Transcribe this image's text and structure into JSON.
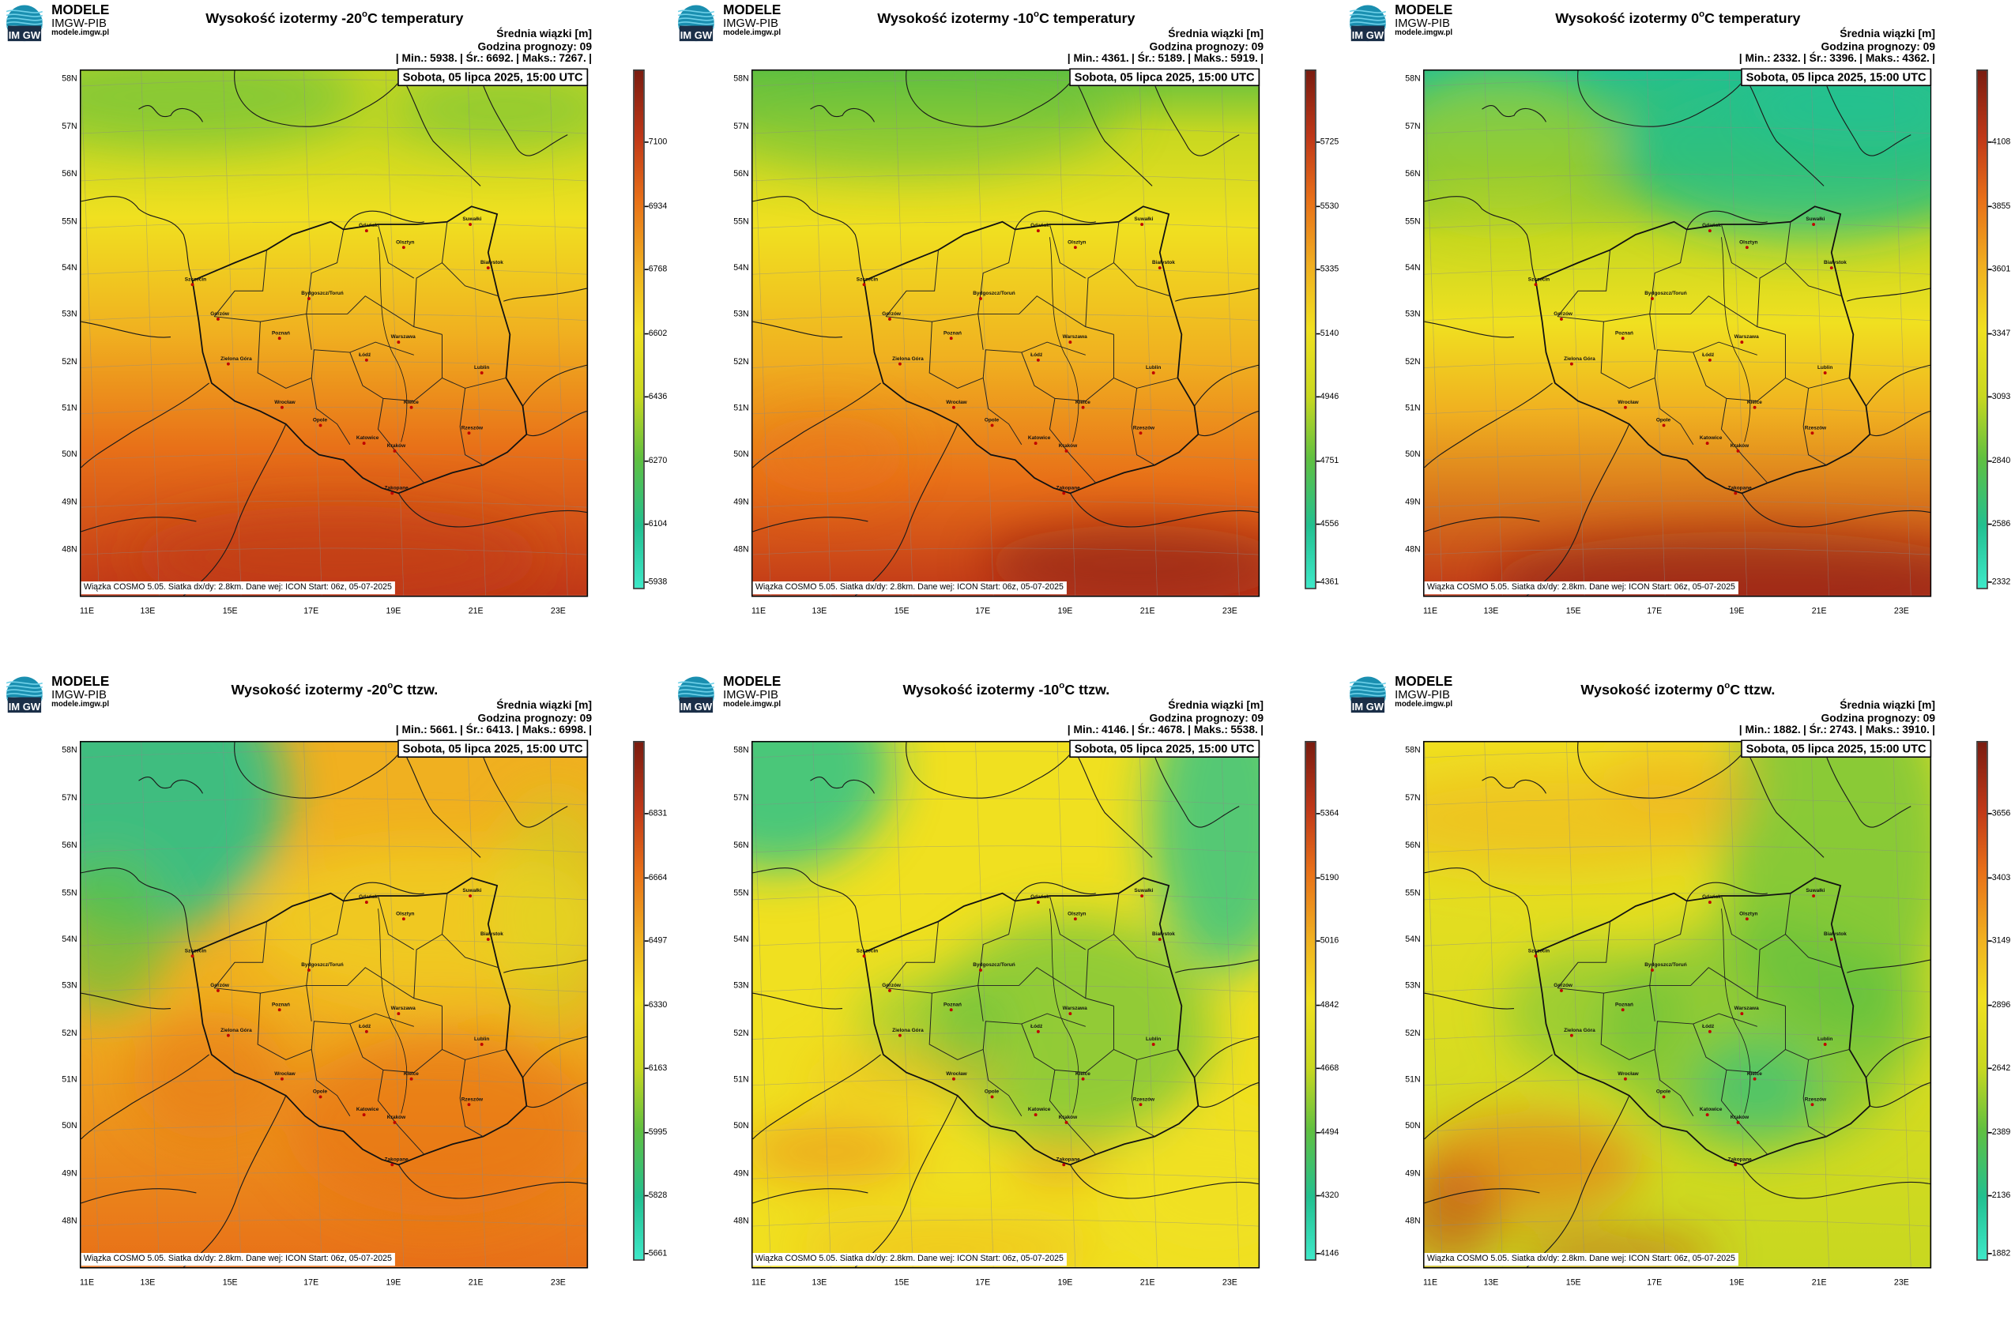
{
  "brand": {
    "name": "MODELE",
    "org": "IMGW-PIB",
    "url": "modele.imgw.pl",
    "logo_text": "IM GW"
  },
  "common": {
    "avg_label": "Średnia wiązki [m]",
    "forecast_label": "Godzina prognozy: 09",
    "date": "Sobota, 05 lipca 2025, 15:00 UTC",
    "footer": "Wiązka COSMO 5.05. Siatka dx/dy: 2.8km. Dane wej: ICON Start: 06z, 05-07-2025",
    "lat_labels": [
      "58N",
      "57N",
      "56N",
      "55N",
      "54N",
      "53N",
      "52N",
      "51N",
      "50N",
      "49N",
      "48N"
    ],
    "lon_labels": [
      "11E",
      "13E",
      "15E",
      "17E",
      "19E",
      "21E",
      "23E"
    ],
    "cities": [
      "Gdańsk",
      "Olsztyn",
      "Suwałki",
      "Szczecin",
      "Białystok",
      "Bydgoszcz/Toruń",
      "Gorzów",
      "Poznań",
      "Warszawa",
      "Łódź",
      "Zielona Góra",
      "Lublin",
      "Wrocław",
      "Kielce",
      "Opole",
      "Rzeszów",
      "Katowice",
      "Kraków",
      "Zakopane"
    ]
  },
  "panels": [
    {
      "title_pre": "Wysokość izotermy -20",
      "title_deg": "o",
      "title_post": "C temperatury",
      "stats": [
        "| Min.:",
        "5938.",
        "| Śr.:",
        "6692.",
        "| Maks.:",
        "7267.",
        "|"
      ],
      "cbar": [
        "7100",
        "6934",
        "6768",
        "6602",
        "6436",
        "6270",
        "6104",
        "5938"
      ],
      "colors": [
        "#3ee8c8",
        "#22c090",
        "#60c040",
        "#c8d820",
        "#f0e020",
        "#f0b020",
        "#e87018",
        "#c03818",
        "#7a1c10"
      ]
    },
    {
      "title_pre": "Wysokość izotermy -10",
      "title_deg": "o",
      "title_post": "C temperatury",
      "stats": [
        "| Min.:",
        "4361.",
        "| Śr.:",
        "5189.",
        "| Maks.:",
        "5919.",
        "|"
      ],
      "cbar": [
        "5725",
        "5530",
        "5335",
        "5140",
        "4946",
        "4751",
        "4556",
        "4361"
      ],
      "colors": [
        "#3ee8c8",
        "#22c090",
        "#60c040",
        "#c8d820",
        "#f0e020",
        "#f0b020",
        "#e87018",
        "#c03818",
        "#7a1c10"
      ]
    },
    {
      "title_pre": "Wysokość izotermy 0",
      "title_deg": "o",
      "title_post": "C temperatury",
      "stats": [
        "| Min.:",
        "2332.",
        "| Śr.:",
        "3396.",
        "| Maks.:",
        "4362.",
        "|"
      ],
      "cbar": [
        "4108",
        "3855",
        "3601",
        "3347",
        "3093",
        "2840",
        "2586",
        "2332"
      ],
      "colors": [
        "#3ee8c8",
        "#22c090",
        "#60c040",
        "#c8d820",
        "#f0e020",
        "#f0b020",
        "#e87018",
        "#c03818",
        "#7a1c10"
      ]
    },
    {
      "title_pre": "Wysokość izotermy -20",
      "title_deg": "o",
      "title_post": "C ttzw.",
      "stats": [
        "| Min.:",
        "5661.",
        "| Śr.:",
        "6413.",
        "| Maks.:",
        "6998.",
        "|"
      ],
      "cbar": [
        "6831",
        "6664",
        "6497",
        "6330",
        "6163",
        "5995",
        "5828",
        "5661"
      ],
      "colors": [
        "#3ee8c8",
        "#22c090",
        "#60c040",
        "#c8d820",
        "#f0e020",
        "#f0b020",
        "#e87018",
        "#c03818",
        "#7a1c10"
      ]
    },
    {
      "title_pre": "Wysokość izotermy -10",
      "title_deg": "o",
      "title_post": "C ttzw.",
      "stats": [
        "| Min.:",
        "4146.",
        "| Śr.:",
        "4678.",
        "| Maks.:",
        "5538.",
        "|"
      ],
      "cbar": [
        "5364",
        "5190",
        "5016",
        "4842",
        "4668",
        "4494",
        "4320",
        "4146"
      ],
      "colors": [
        "#3ee8c8",
        "#22c090",
        "#60c040",
        "#c8d820",
        "#f0e020",
        "#f0b020",
        "#e87018",
        "#c03818",
        "#7a1c10"
      ]
    },
    {
      "title_pre": "Wysokość izotermy 0",
      "title_deg": "o",
      "title_post": "C ttzw.",
      "stats": [
        "| Min.:",
        "1882.",
        "| Śr.:",
        "2743.",
        "| Maks.:",
        "3910.",
        "|"
      ],
      "cbar": [
        "3656",
        "3403",
        "3149",
        "2896",
        "2642",
        "2389",
        "2136",
        "1882"
      ],
      "colors": [
        "#3ee8c8",
        "#22c090",
        "#60c040",
        "#c8d820",
        "#f0e020",
        "#f0b020",
        "#e87018",
        "#c03818",
        "#7a1c10"
      ]
    }
  ]
}
